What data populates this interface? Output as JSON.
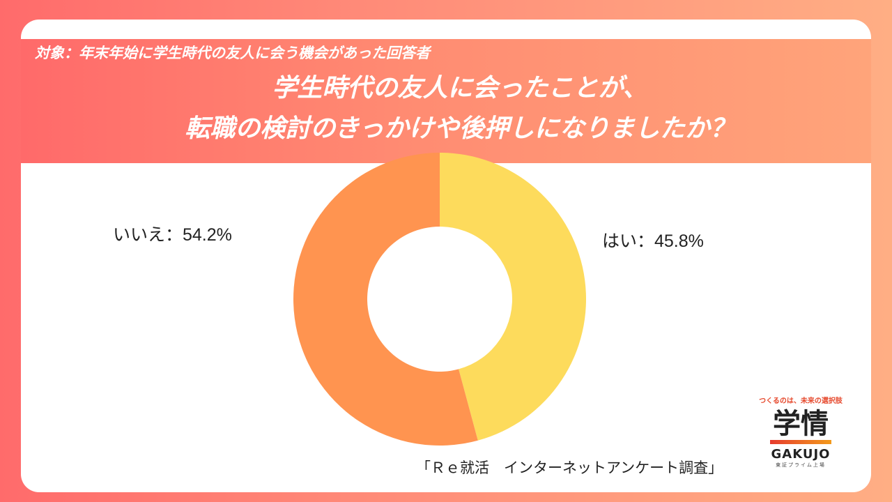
{
  "header": {
    "subject": "対象：年末年始に学生時代の友人に会う機会があった回答者",
    "title_line1": "学生時代の友人に会ったことが、",
    "title_line2": "転職の検討のきっかけや後押しになりましたか？"
  },
  "chart_data": {
    "type": "pie",
    "variant": "donut",
    "slices": [
      {
        "label": "はい",
        "value": 45.8,
        "color": "#fddb5c",
        "display": "はい：45.8%"
      },
      {
        "label": "いいえ",
        "value": 54.2,
        "color": "#ff9450",
        "display": "いいえ：54.2%"
      }
    ]
  },
  "source": "「Ｒｅ就活　インターネットアンケート調査」",
  "logo": {
    "tagline": "つくるのは、未来の選択肢",
    "mark": "学情",
    "name": "GAKUJO",
    "sub": "東証プライム上場"
  },
  "colors": {
    "background": "#ff7a6e",
    "header_band": "#ff8a72",
    "yes": "#fddb5c",
    "no": "#ff9450"
  }
}
